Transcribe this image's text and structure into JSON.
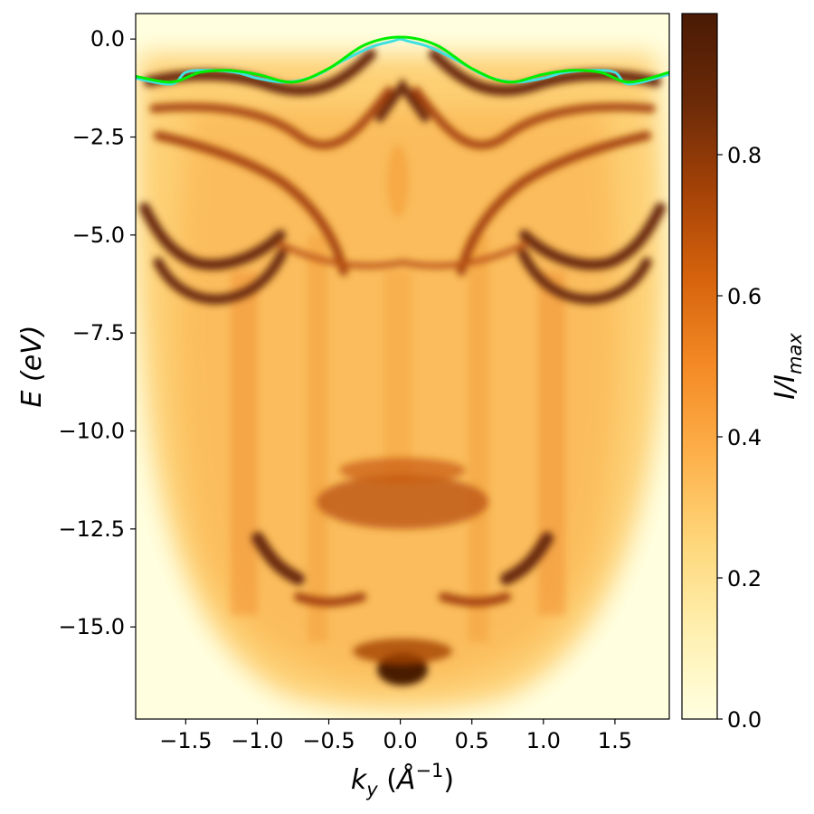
{
  "chart_data": {
    "type": "heatmap",
    "title": "",
    "xlabel": {
      "main": "k",
      "sub": "y",
      "unit_open": " (",
      "unit": "Å",
      "sup": "−1",
      "unit_close": ")"
    },
    "ylabel": "E (eV)",
    "colorbar_label": {
      "main": "I/I",
      "sub": "max"
    },
    "xlim": [
      -1.85,
      1.88
    ],
    "ylim": [
      -17.35,
      0.65
    ],
    "colorbar_range": [
      0.0,
      1.0
    ],
    "x_ticks": [
      -1.5,
      -1.0,
      -0.5,
      0.0,
      0.5,
      1.0,
      1.5
    ],
    "x_tick_labels": [
      "−1.5",
      "−1.0",
      "−0.5",
      "0.0",
      "0.5",
      "1.0",
      "1.5"
    ],
    "y_ticks": [
      0.0,
      -2.5,
      -5.0,
      -7.5,
      -10.0,
      -12.5,
      -15.0
    ],
    "y_tick_labels": [
      "0.0",
      "−2.5",
      "−5.0",
      "−7.5",
      "−10.0",
      "−12.5",
      "−15.0"
    ],
    "colorbar_ticks": [
      0.0,
      0.2,
      0.4,
      0.6,
      0.8
    ],
    "colorbar_tick_labels": [
      "0.0",
      "0.2",
      "0.4",
      "0.6",
      "0.8"
    ],
    "colormap": [
      "#ffffe0",
      "#fff0b0",
      "#fed77a",
      "#fdb04a",
      "#f48a25",
      "#d6630c",
      "#a44207",
      "#6b2a08",
      "#4a1a04"
    ],
    "grid": false,
    "band_lines": [
      {
        "color": "#40e0e0",
        "x": [
          -1.85,
          -1.6,
          -1.5,
          -1.35,
          -1.15,
          -1.0,
          -0.8,
          -0.6,
          -0.4,
          -0.2,
          -0.05,
          0.0,
          0.05,
          0.2,
          0.4,
          0.6,
          0.8,
          1.0,
          1.15,
          1.35,
          1.5,
          1.6,
          1.88
        ],
        "y": [
          -1.0,
          -1.15,
          -0.85,
          -0.8,
          -0.85,
          -1.0,
          -1.1,
          -0.95,
          -0.55,
          -0.2,
          -0.05,
          0.0,
          -0.05,
          -0.2,
          -0.55,
          -0.95,
          -1.1,
          -1.0,
          -0.85,
          -0.8,
          -0.85,
          -1.15,
          -0.9
        ]
      },
      {
        "color": "#00ee00",
        "x": [
          -1.85,
          -1.6,
          -1.4,
          -1.2,
          -1.0,
          -0.75,
          -0.5,
          -0.25,
          0.0,
          0.25,
          0.5,
          0.75,
          1.0,
          1.2,
          1.4,
          1.6,
          1.88
        ],
        "y": [
          -0.95,
          -1.1,
          -0.85,
          -0.8,
          -0.9,
          -1.1,
          -0.75,
          -0.15,
          0.05,
          -0.15,
          -0.75,
          -1.1,
          -0.9,
          -0.8,
          -0.85,
          -1.1,
          -0.85
        ]
      }
    ]
  }
}
